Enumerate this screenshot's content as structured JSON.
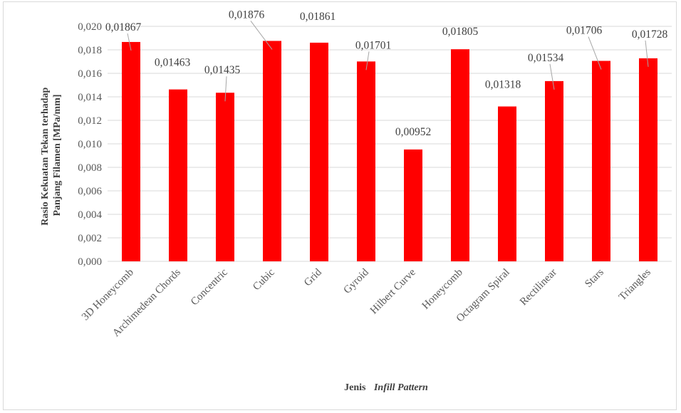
{
  "chart_data": {
    "type": "bar",
    "categories": [
      "3D Honeycomb",
      "Archimedean Chords",
      "Concentric",
      "Cubic",
      "Grid",
      "Gyroid",
      "Hilbert Curve",
      "Honeycomb",
      "Octagram Spiral",
      "Rectilinear",
      "Stars",
      "Triangles"
    ],
    "values": [
      0.01867,
      0.01463,
      0.01435,
      0.01876,
      0.01861,
      0.01701,
      0.00952,
      0.01805,
      0.01318,
      0.01534,
      0.01706,
      0.01728
    ],
    "data_labels": [
      "0,01867",
      "0,01463",
      "0,01435",
      "0,01876",
      "0,01861",
      "0,01701",
      "0,00952",
      "0,01805",
      "0,01318",
      "0,01534",
      "0,01706",
      "0,01728"
    ],
    "y_ticks": [
      "0,000",
      "0,002",
      "0,004",
      "0,006",
      "0,008",
      "0,010",
      "0,012",
      "0,014",
      "0,016",
      "0,018",
      "0,020"
    ],
    "ylim": [
      0,
      0.02
    ],
    "ylabel_line1": "Rasio Kekuatan Tekan terhadap",
    "ylabel_line2": "Panjang Filamen [MPa/mm]",
    "xlabel_prefix": "Jenis",
    "xlabel_italic": "Infill Pattern",
    "grid": true,
    "legend": "none",
    "bar_color": "#ff0000",
    "grid_color": "#d9d9d9"
  }
}
